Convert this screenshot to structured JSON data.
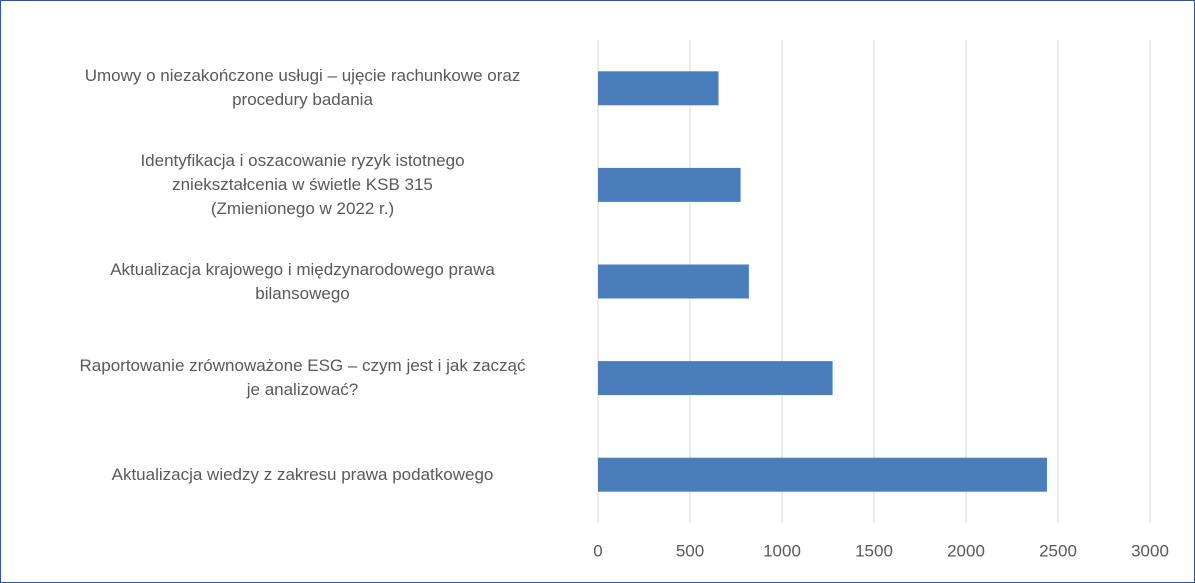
{
  "chart_data": {
    "type": "barh",
    "categories": [
      "Umowy o niezakończone usługi – ujęcie rachunkowe oraz\nprocedury badania",
      "Identyfikacja i oszacowanie ryzyk istotnego\nzniekształcenia w świetle KSB 315\n(Zmienionego w 2022 r.)",
      "Aktualizacja krajowego i międzynarodowego prawa\nbilansowego",
      "Raportowanie zrównoważone ESG – czym jest i jak zacząć\nje analizować?",
      "Aktualizacja wiedzy z zakresu prawa podatkowego"
    ],
    "values": [
      655,
      775,
      820,
      1275,
      2440
    ],
    "color": "#4a7ebb",
    "xlim": [
      0,
      3000
    ],
    "xticks": [
      0,
      500,
      1000,
      1500,
      2000,
      2500,
      3000
    ],
    "grid": true
  }
}
